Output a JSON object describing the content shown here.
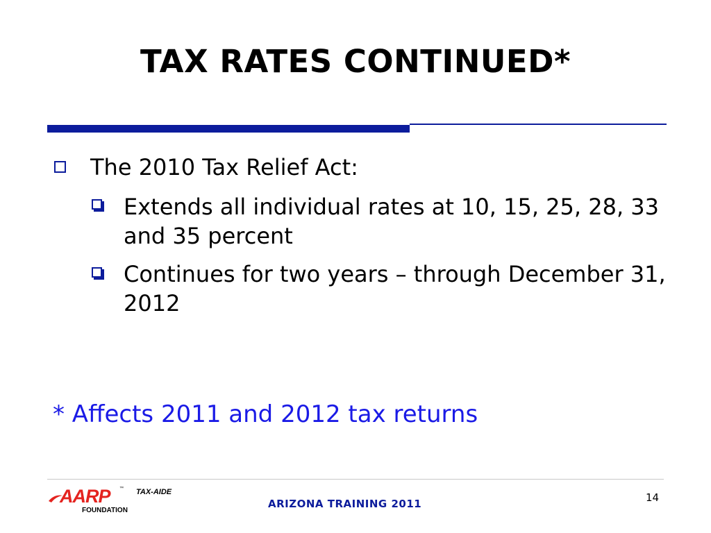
{
  "slide": {
    "title": "TAX RATES CONTINUED*",
    "bullets": {
      "level1": "The 2010 Tax Relief Act:",
      "level2": [
        "Extends all individual rates at 10, 15, 25, 28, 33 and 35 percent",
        "Continues for two years – through December 31, 2012"
      ]
    },
    "footnote": "* Affects 2011 and 2012 tax returns",
    "footer": {
      "center_text": "ARIZONA TRAINING 2011",
      "page_number": "14"
    },
    "logo": {
      "brand": "AARP",
      "trademark": "™",
      "program": "TAX-AIDE",
      "subtext": "FOUNDATION"
    },
    "colors": {
      "accent_blue": "#0c1c9c",
      "footnote_blue": "#1a1ae6",
      "logo_red": "#e4231f"
    }
  }
}
